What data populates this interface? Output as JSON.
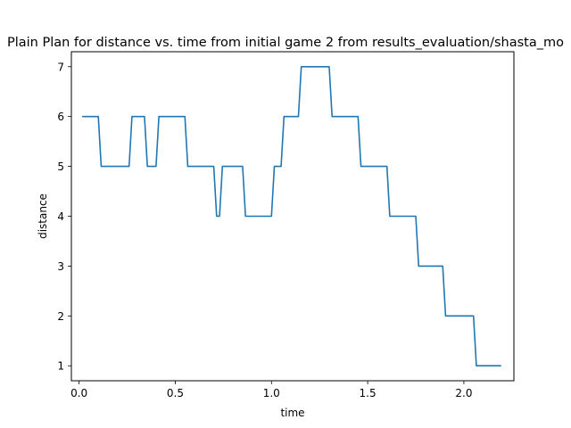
{
  "chart_data": {
    "type": "line",
    "title": "Plain Plan for distance vs. time from initial game 2 from results_evaluation/shasta_mo",
    "xlabel": "time",
    "ylabel": "distance",
    "xlim": [
      -0.04,
      2.26
    ],
    "ylim": [
      0.7,
      7.3
    ],
    "xticks": [
      0.0,
      0.5,
      1.0,
      1.5,
      2.0
    ],
    "xtick_labels": [
      "0.0",
      "0.5",
      "1.0",
      "1.5",
      "2.0"
    ],
    "yticks": [
      1,
      2,
      3,
      4,
      5,
      6,
      7
    ],
    "ytick_labels": [
      "1",
      "2",
      "3",
      "4",
      "5",
      "6",
      "7"
    ],
    "grid": false,
    "series": [
      {
        "color": "#1f77b4",
        "x": [
          0.02,
          0.1,
          0.115,
          0.26,
          0.275,
          0.34,
          0.355,
          0.4,
          0.415,
          0.55,
          0.565,
          0.7,
          0.715,
          0.73,
          0.745,
          0.85,
          0.865,
          1.0,
          1.015,
          1.05,
          1.065,
          1.14,
          1.155,
          1.3,
          1.315,
          1.45,
          1.465,
          1.6,
          1.615,
          1.75,
          1.765,
          1.89,
          1.905,
          2.05,
          2.065,
          2.19
        ],
        "y": [
          6,
          6,
          5,
          5,
          6,
          6,
          5,
          5,
          6,
          6,
          5,
          5,
          4,
          4,
          5,
          5,
          4,
          4,
          5,
          5,
          6,
          6,
          7,
          7,
          6,
          6,
          5,
          5,
          4,
          4,
          3,
          3,
          2,
          2,
          1,
          1
        ]
      }
    ]
  }
}
